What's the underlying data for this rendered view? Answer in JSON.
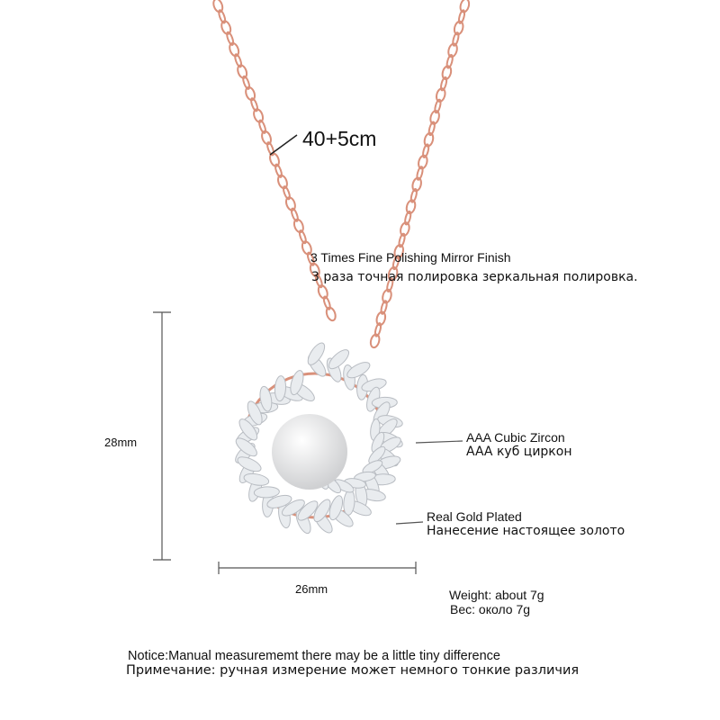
{
  "chain_length": "40+5cm",
  "polishing": {
    "en": "3 Times Fine Polishing Mirror Finish",
    "ru": "3 раза точная полировка зеркальная полировка."
  },
  "height_label": "28mm",
  "width_label": "26mm",
  "zircon": {
    "en": "AAA Cubic Zircon",
    "ru": "AAA куб циркон"
  },
  "plating": {
    "en": "Real Gold Plated",
    "ru": "Нанесение настоящее золото"
  },
  "weight": {
    "en": "Weight: about  7g",
    "ru": "Вес: около  7g"
  },
  "notice": {
    "en": "Notice:Manual measurememt there may be a little tiny difference",
    "ru": "Примечание: ручная измерение может немного тонкие различия"
  },
  "colors": {
    "rose_gold": "#d9907a",
    "stone": "#e9ecef",
    "pearl": "#f3f3f3",
    "text": "#111111",
    "line": "#555555"
  }
}
